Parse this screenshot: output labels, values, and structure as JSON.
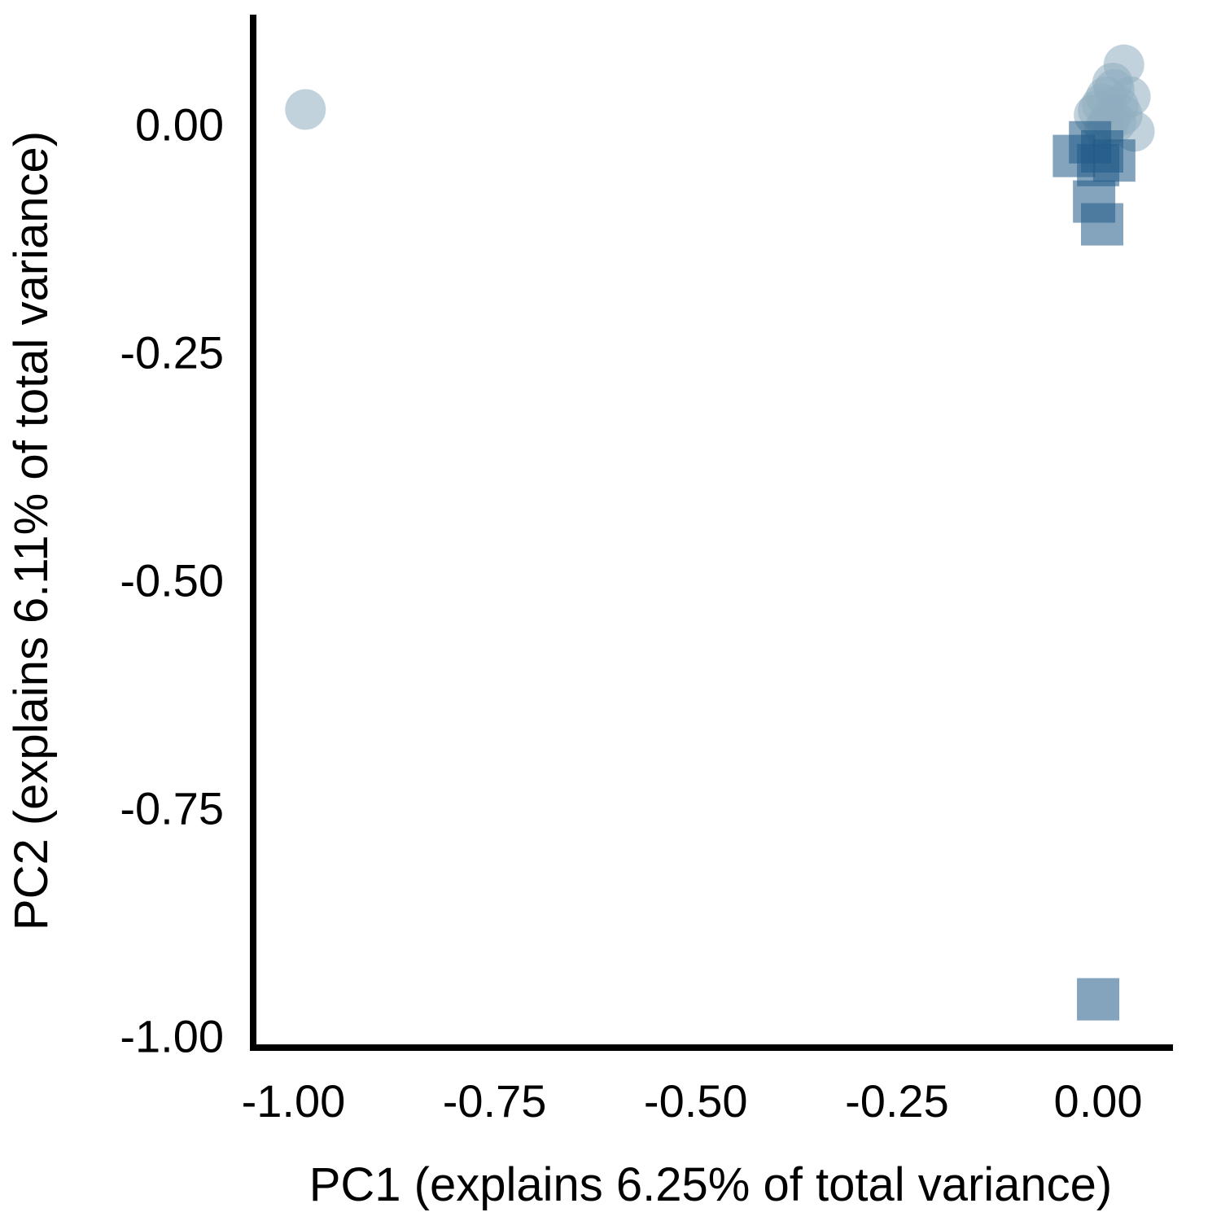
{
  "chart_data": {
    "type": "scatter",
    "xlabel": "PC1 (explains 6.25% of total variance)",
    "ylabel": "PC2 (explains 6.11% of total variance)",
    "xlim": [
      -1.05,
      0.093
    ],
    "ylim": [
      -1.013,
      0.12
    ],
    "x_ticks": [
      -1.0,
      -0.75,
      -0.5,
      -0.25,
      0.0
    ],
    "x_tick_labels": [
      "-1.00",
      "-0.75",
      "-0.50",
      "-0.25",
      "0.00"
    ],
    "y_ticks": [
      -1.0,
      -0.75,
      -0.5,
      -0.25,
      0.0
    ],
    "y_tick_labels": [
      "-1.00",
      "-0.75",
      "-0.50",
      "-0.25",
      "0.00"
    ],
    "grid": false,
    "series": [
      {
        "marker": "circle",
        "color": "#8fadc0",
        "opacity": 0.55,
        "points": [
          [
            -0.985,
            0.016
          ],
          [
            0.032,
            0.065
          ],
          [
            0.045,
            -0.008
          ],
          [
            0.04,
            0.03
          ],
          [
            0.02,
            0.038
          ],
          [
            0.01,
            0.03
          ],
          [
            0.005,
            0.022
          ],
          [
            0.0,
            0.015
          ],
          [
            -0.005,
            0.01
          ],
          [
            0.015,
            0.005
          ],
          [
            0.025,
            0.02
          ],
          [
            0.012,
            0.0
          ],
          [
            0.03,
            0.01
          ],
          [
            0.018,
            0.045
          ],
          [
            0.008,
            -0.005
          ],
          [
            0.022,
            0.002
          ]
        ]
      },
      {
        "marker": "square",
        "color": "#1f5a86",
        "opacity": 0.55,
        "points": [
          [
            -0.03,
            -0.035
          ],
          [
            -0.01,
            -0.02
          ],
          [
            0.0,
            -0.045
          ],
          [
            0.02,
            -0.04
          ],
          [
            0.005,
            -0.03
          ],
          [
            -0.005,
            -0.085
          ],
          [
            0.005,
            -0.11
          ],
          [
            0.0,
            -0.96
          ]
        ]
      }
    ]
  }
}
